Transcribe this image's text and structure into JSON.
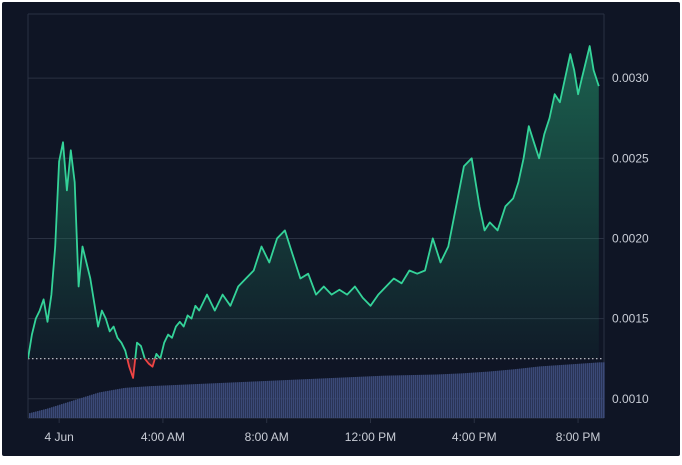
{
  "colors": {
    "background": "#0f1525",
    "grid": "#2a3142",
    "line_up": "#34d399",
    "line_down": "#ef4444",
    "area_top": "#1f7a5c",
    "baseline": "#c8ccd4",
    "volume": "#3b4a78",
    "tick_text": "#c9cdd6"
  },
  "chart_data": {
    "type": "area",
    "title": "",
    "xlabel": "",
    "ylabel": "",
    "baseline_value": 0.00125,
    "grid": true,
    "legend": "none",
    "x_ticks": [
      {
        "label": "4 Jun",
        "hour": 0
      },
      {
        "label": "4:00 AM",
        "hour": 4
      },
      {
        "label": "8:00 AM",
        "hour": 8
      },
      {
        "label": "12:00 PM",
        "hour": 12
      },
      {
        "label": "4:00 PM",
        "hour": 16
      },
      {
        "label": "8:00 PM",
        "hour": 20
      }
    ],
    "y_ticks": [
      0.001,
      0.0015,
      0.002,
      0.0025,
      0.003
    ],
    "y_tick_labels": [
      "0.0010",
      "0.0015",
      "0.0020",
      "0.0025",
      "0.0030"
    ],
    "ylim": [
      0.00088,
      0.0034
    ],
    "xlim": [
      -1.2,
      21.0
    ],
    "price": {
      "hours": [
        -1.2,
        -1.05,
        -0.9,
        -0.75,
        -0.6,
        -0.45,
        -0.3,
        -0.15,
        0.0,
        0.15,
        0.3,
        0.45,
        0.6,
        0.75,
        0.9,
        1.05,
        1.2,
        1.35,
        1.5,
        1.65,
        1.8,
        1.95,
        2.1,
        2.25,
        2.4,
        2.55,
        2.7,
        2.85,
        3.0,
        3.15,
        3.3,
        3.45,
        3.6,
        3.75,
        3.9,
        4.05,
        4.2,
        4.35,
        4.5,
        4.65,
        4.8,
        4.95,
        5.1,
        5.25,
        5.4,
        5.55,
        5.7,
        6.0,
        6.3,
        6.6,
        6.9,
        7.2,
        7.5,
        7.8,
        8.1,
        8.4,
        8.7,
        9.0,
        9.3,
        9.6,
        9.9,
        10.2,
        10.5,
        10.8,
        11.1,
        11.4,
        11.7,
        12.0,
        12.3,
        12.6,
        12.9,
        13.2,
        13.5,
        13.8,
        14.1,
        14.4,
        14.7,
        15.0,
        15.3,
        15.6,
        15.9,
        16.2,
        16.4,
        16.6,
        16.9,
        17.2,
        17.5,
        17.7,
        17.9,
        18.1,
        18.3,
        18.5,
        18.7,
        18.9,
        19.1,
        19.3,
        19.5,
        19.7,
        19.85,
        20.0,
        20.15,
        20.3,
        20.45,
        20.6,
        20.8
      ],
      "values": [
        0.00125,
        0.0014,
        0.0015,
        0.00155,
        0.00162,
        0.00148,
        0.00165,
        0.00195,
        0.00248,
        0.0026,
        0.0023,
        0.00255,
        0.00235,
        0.0017,
        0.00195,
        0.00185,
        0.00175,
        0.0016,
        0.00145,
        0.00155,
        0.0015,
        0.00142,
        0.00145,
        0.00138,
        0.00135,
        0.0013,
        0.0012,
        0.00113,
        0.00135,
        0.00133,
        0.00125,
        0.00122,
        0.0012,
        0.00128,
        0.00125,
        0.00135,
        0.0014,
        0.00138,
        0.00145,
        0.00148,
        0.00145,
        0.00152,
        0.0015,
        0.00158,
        0.00155,
        0.0016,
        0.00165,
        0.00155,
        0.00165,
        0.00158,
        0.0017,
        0.00175,
        0.0018,
        0.00195,
        0.00185,
        0.002,
        0.00205,
        0.0019,
        0.00175,
        0.00178,
        0.00165,
        0.0017,
        0.00165,
        0.00168,
        0.00165,
        0.0017,
        0.00163,
        0.00158,
        0.00165,
        0.0017,
        0.00175,
        0.00172,
        0.0018,
        0.00178,
        0.0018,
        0.002,
        0.00185,
        0.00195,
        0.0022,
        0.00245,
        0.0025,
        0.0022,
        0.00205,
        0.0021,
        0.00205,
        0.0022,
        0.00225,
        0.00235,
        0.0025,
        0.0027,
        0.0026,
        0.0025,
        0.00265,
        0.00275,
        0.0029,
        0.00285,
        0.003,
        0.00315,
        0.00305,
        0.0029,
        0.003,
        0.0031,
        0.0032,
        0.00305,
        0.00295
      ]
    },
    "volume": {
      "hours": [
        -1.2,
        -0.5,
        0.5,
        1.5,
        2.5,
        3.5,
        4.5,
        5.5,
        6.5,
        7.5,
        8.5,
        9.5,
        10.5,
        11.5,
        12.5,
        13.5,
        14.5,
        15.5,
        16.5,
        17.5,
        18.5,
        19.5,
        20.5,
        20.8
      ],
      "values": [
        0.08,
        0.16,
        0.3,
        0.44,
        0.52,
        0.55,
        0.57,
        0.59,
        0.61,
        0.63,
        0.65,
        0.67,
        0.69,
        0.71,
        0.73,
        0.74,
        0.75,
        0.77,
        0.8,
        0.84,
        0.89,
        0.92,
        0.95,
        0.96
      ]
    }
  }
}
